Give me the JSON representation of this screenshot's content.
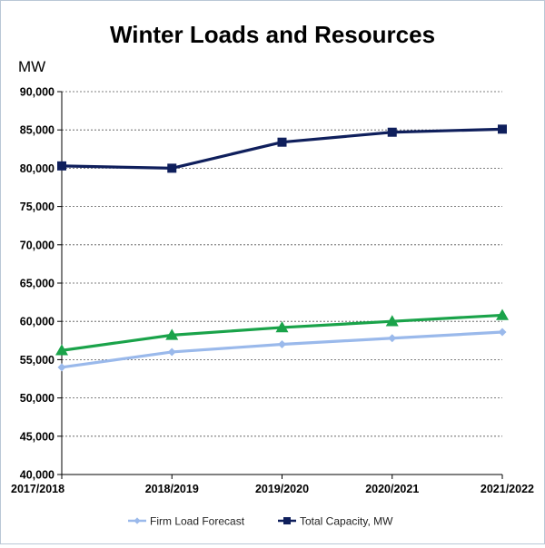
{
  "chart_data": {
    "type": "line",
    "title": "Winter Loads and Resources",
    "ylabel": "MW",
    "xlabel": "",
    "categories": [
      "2017/2018",
      "2018/2019",
      "2019/2020",
      "2020/2021",
      "2021/2022"
    ],
    "ylim": [
      40000,
      90000
    ],
    "ytick_step": 5000,
    "yticks": [
      "40,000",
      "45,000",
      "50,000",
      "55,000",
      "60,000",
      "65,000",
      "70,000",
      "75,000",
      "80,000",
      "85,000",
      "90,000"
    ],
    "grid": "horizontal-dotted",
    "legend": "bottom",
    "series": [
      {
        "name": "Total Capacity, MW",
        "values": [
          80300,
          80000,
          83400,
          84700,
          85100
        ],
        "color": "#0f1f5c",
        "marker": "square",
        "in_legend": true
      },
      {
        "name": "",
        "values": [
          56200,
          58200,
          59200,
          60000,
          60800
        ],
        "color": "#1aa34a",
        "marker": "triangle",
        "in_legend": false
      },
      {
        "name": "Firm Load Forecast",
        "values": [
          54000,
          56000,
          57000,
          57800,
          58600
        ],
        "color": "#9ab9eb",
        "marker": "diamond",
        "in_legend": true
      }
    ],
    "legend_order": [
      "Firm Load Forecast",
      "Total Capacity, MW"
    ]
  }
}
